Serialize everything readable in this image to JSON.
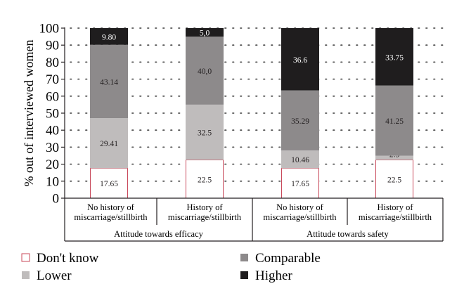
{
  "chart_data": {
    "type": "bar",
    "stacked": true,
    "ylabel": "% out of interviewed women",
    "ylim": [
      0,
      100
    ],
    "yticks": [
      "0",
      "10",
      "20",
      "30",
      "40",
      "50",
      "60",
      "70",
      "80",
      "90",
      "100"
    ],
    "grid": "dotted",
    "groups": [
      {
        "label": "Attitude towards efficacy",
        "categories": [
          {
            "lines": [
              "No history of",
              "miscarriage/stillbirth"
            ]
          },
          {
            "lines": [
              "History of",
              "miscarriage/stillbirth"
            ]
          }
        ]
      },
      {
        "label": "Attitude towards safety",
        "categories": [
          {
            "lines": [
              "No history of",
              "miscarriage/stillbirth"
            ]
          },
          {
            "lines": [
              "History of",
              "miscarriage/stillbirth"
            ]
          }
        ]
      }
    ],
    "series": [
      {
        "name": "Don't know",
        "color": "#ffffff",
        "border": "#c8485a",
        "values": [
          17.65,
          22.5,
          17.65,
          22.5
        ],
        "labels": [
          "17.65",
          "22.5",
          "17.65",
          "22.5"
        ]
      },
      {
        "name": "Lower",
        "color": "#bfbcbc",
        "values": [
          29.41,
          32.5,
          10.46,
          2.5
        ],
        "labels": [
          "29.41",
          "32.5",
          "10.46",
          "2.5"
        ]
      },
      {
        "name": "Comparable",
        "color": "#8d8a8b",
        "values": [
          43.14,
          40.0,
          35.29,
          41.25
        ],
        "labels": [
          "43.14",
          "40,0",
          "35.29",
          "41.25"
        ]
      },
      {
        "name": "Higher",
        "color": "#1f1d1e",
        "values": [
          9.8,
          5.0,
          36.6,
          33.75
        ],
        "labels": [
          "9.80",
          "5,0",
          "36.6",
          "33.75"
        ]
      }
    ],
    "legend": {
      "placement": "bottom",
      "items": [
        "Don't know",
        "Comparable",
        "Lower",
        "Higher"
      ]
    }
  }
}
